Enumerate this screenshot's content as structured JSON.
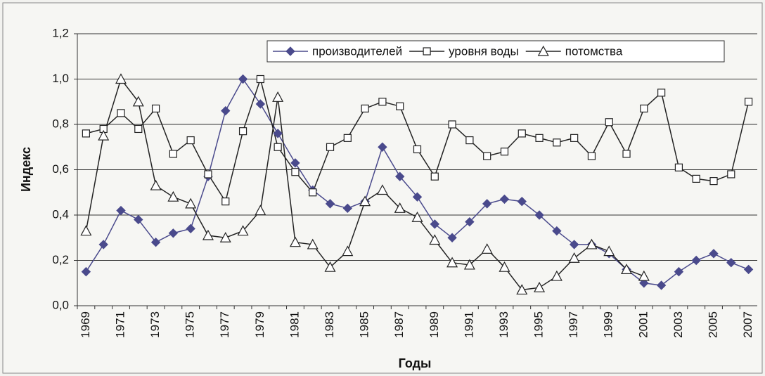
{
  "chart_data": {
    "type": "line",
    "x_label": "Годы",
    "y_label": "Индекс",
    "categories": [
      "1969",
      null,
      "1971",
      null,
      "1973",
      null,
      "1975",
      null,
      "1977",
      null,
      "1979",
      null,
      "1981",
      null,
      "1983",
      null,
      "1985",
      null,
      "1987",
      null,
      "1989",
      null,
      "1991",
      null,
      "1993",
      null,
      "1995",
      null,
      "1997",
      null,
      "1999",
      null,
      "2001",
      null,
      "2003",
      null,
      "2005",
      null,
      "2007"
    ],
    "series": [
      {
        "name": "производителей",
        "color": "#4a4a8c",
        "marker": "diamond",
        "values": [
          0.15,
          0.27,
          0.42,
          0.38,
          0.28,
          0.32,
          0.34,
          0.57,
          0.86,
          1.0,
          0.89,
          0.76,
          0.63,
          0.51,
          0.45,
          0.43,
          0.46,
          0.7,
          0.57,
          0.48,
          0.36,
          0.3,
          0.37,
          0.45,
          0.47,
          0.46,
          0.4,
          0.33,
          0.27,
          0.27,
          0.23,
          0.16,
          0.1,
          0.09,
          0.15,
          0.2,
          0.23,
          0.19,
          0.16
        ]
      },
      {
        "name": "уровня воды",
        "color": "#222222",
        "marker": "square",
        "values": [
          0.76,
          0.78,
          0.85,
          0.78,
          0.87,
          0.67,
          0.73,
          0.58,
          0.46,
          0.77,
          1.0,
          0.7,
          0.59,
          0.5,
          0.7,
          0.74,
          0.87,
          0.9,
          0.88,
          0.69,
          0.57,
          0.8,
          0.73,
          0.66,
          0.68,
          0.76,
          0.74,
          0.72,
          0.74,
          0.66,
          0.81,
          0.67,
          0.87,
          0.94,
          0.61,
          0.56,
          0.55,
          0.58,
          0.9
        ]
      },
      {
        "name": "потомства",
        "color": "#222222",
        "marker": "triangle",
        "values": [
          0.33,
          0.75,
          1.0,
          0.9,
          0.53,
          0.48,
          0.45,
          0.31,
          0.3,
          0.33,
          0.42,
          0.92,
          0.28,
          0.27,
          0.17,
          0.24,
          0.46,
          0.51,
          0.43,
          0.39,
          0.29,
          0.19,
          0.18,
          0.25,
          0.17,
          0.07,
          0.08,
          0.13,
          0.21,
          0.27,
          0.24,
          0.16,
          0.13,
          null,
          null,
          null,
          null,
          null,
          null
        ]
      }
    ],
    "ylim": [
      0,
      1.2
    ],
    "yticks": [
      {
        "value": 0,
        "label": "0,0"
      },
      {
        "value": 0.2,
        "label": "0,2"
      },
      {
        "value": 0.4,
        "label": "0,4"
      },
      {
        "value": 0.6,
        "label": "0,6"
      },
      {
        "value": 0.8,
        "label": "0,8"
      },
      {
        "value": 1.0,
        "label": "1,0"
      },
      {
        "value": 1.2,
        "label": "1,2"
      }
    ],
    "grid": true,
    "legend": "top-right"
  }
}
